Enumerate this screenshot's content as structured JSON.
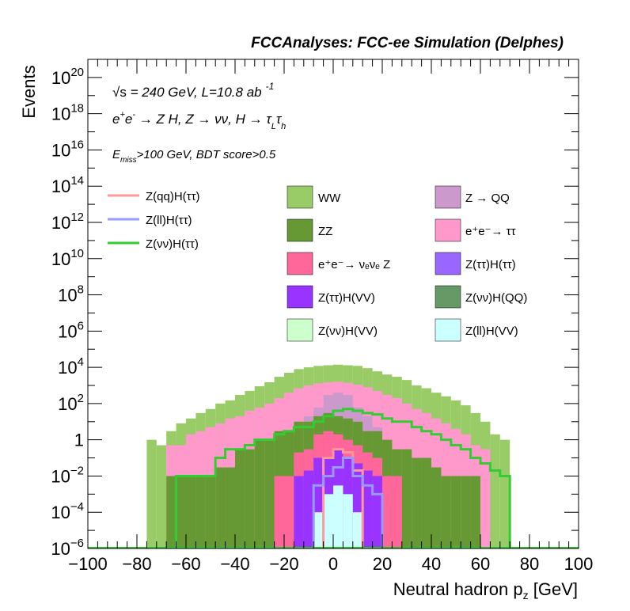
{
  "chart_data": {
    "type": "histogram",
    "title": "FCCAnalyses: FCC-ee Simulation (Delphes)",
    "xlabel": "Neutral hadron p",
    "xlabel_sub": "z",
    "xlabel_unit": "[GeV]",
    "ylabel": "Events",
    "xlim": [
      -100,
      100
    ],
    "ylim": [
      1e-06,
      1e+21
    ],
    "yscale": "log",
    "grid": false,
    "legend_position": "top (inside plot)",
    "annotations": {
      "sqrt": "√s",
      "energy": " = 240 GeV, L=10.8 ab",
      "lumi_exp": "-1",
      "proc_e": "e",
      "proc_plus": "+",
      "proc_e2": "e",
      "proc_minus": "-",
      "proc_main": " → Z H, Z → νν, H → τ",
      "proc_tauL": "L",
      "proc_tau2": "τ",
      "proc_tauh": "h",
      "cut_E": "E",
      "cut_miss": "miss",
      "cut_rest": ">100 GeV, BDT score>0.5"
    },
    "x_ticks": [
      "−100",
      "−80",
      "−60",
      "−40",
      "−20",
      "0",
      "20",
      "40",
      "60",
      "80",
      "100"
    ],
    "y_ticks": [
      {
        "base": "10",
        "exp": "−6"
      },
      {
        "base": "10",
        "exp": "−4"
      },
      {
        "base": "10",
        "exp": "−2"
      },
      {
        "base": "1",
        "exp": ""
      },
      {
        "base": "10",
        "exp": "2"
      },
      {
        "base": "10",
        "exp": "4"
      },
      {
        "base": "10",
        "exp": "6"
      },
      {
        "base": "10",
        "exp": "8"
      },
      {
        "base": "10",
        "exp": "10"
      },
      {
        "base": "10",
        "exp": "12"
      },
      {
        "base": "10",
        "exp": "14"
      },
      {
        "base": "10",
        "exp": "16"
      },
      {
        "base": "10",
        "exp": "18"
      },
      {
        "base": "10",
        "exp": "20"
      }
    ],
    "bin_edges": [
      -76,
      -72,
      -68,
      -64,
      -60,
      -56,
      -52,
      -48,
      -44,
      -40,
      -36,
      -32,
      -28,
      -24,
      -20,
      -16,
      -12,
      -8,
      -4,
      0,
      4,
      8,
      12,
      16,
      20,
      24,
      28,
      32,
      36,
      40,
      44,
      48,
      52,
      56,
      60,
      64,
      68,
      72
    ],
    "stacked_totals": [
      {
        "name": "WW",
        "color": "#99cc66",
        "values": [
          1.0,
          0.5,
          3.0,
          8.0,
          15,
          30,
          50,
          100,
          150,
          300,
          500,
          900,
          1500,
          3000,
          5000,
          8000,
          10000,
          12000,
          13000,
          14000,
          13000,
          12000,
          9000,
          6000,
          4000,
          3000,
          2000,
          1000,
          700,
          400,
          250,
          150,
          80,
          30,
          10,
          2.0,
          1.0
        ]
      },
      {
        "name": "e+e- → ττ",
        "color": "#ff99cc",
        "values": [
          1e-07,
          1e-07,
          0.5,
          0.5,
          2.0,
          3.0,
          5.0,
          8.0,
          15,
          20,
          40,
          60,
          100,
          200,
          400,
          700,
          1000,
          1300,
          1500,
          1600,
          1400,
          1100,
          800,
          500,
          300,
          200,
          100,
          50,
          30,
          15,
          8,
          4,
          2,
          0.5,
          0.3,
          1e-07,
          1e-07
        ]
      },
      {
        "name": "Z → QQ",
        "color": "#cc99cc",
        "values": [
          1e-07,
          1e-07,
          1e-07,
          1e-07,
          1e-07,
          1e-07,
          1e-07,
          1e-07,
          1e-07,
          1e-07,
          1e-07,
          1e-07,
          1e-07,
          1e-07,
          1e-07,
          5,
          20,
          60,
          300,
          400,
          300,
          60,
          20,
          5,
          1e-07,
          1e-07,
          1e-07,
          1e-07,
          1e-07,
          1e-07,
          1e-07,
          1e-07,
          1e-07,
          1e-07,
          1e-07,
          1e-07,
          1e-07
        ]
      },
      {
        "name": "ZZ",
        "color": "#669933",
        "values": [
          1e-07,
          1e-07,
          0.01,
          0.01,
          0.01,
          0.01,
          0.01,
          0.03,
          0.03,
          0.3,
          0.3,
          1.0,
          1.0,
          3.0,
          3.0,
          10,
          10,
          20,
          30,
          20,
          15,
          10,
          3.0,
          3.0,
          1.0,
          0.3,
          0.3,
          0.1,
          0.1,
          0.03,
          0.01,
          0.01,
          0.01,
          0.01,
          1e-07,
          1e-07,
          1e-07
        ]
      },
      {
        "name": "e+e- → νeνe Z",
        "color": "#ff6699",
        "values": [
          1e-07,
          1e-07,
          1e-07,
          1e-07,
          1e-07,
          1e-07,
          1e-07,
          1e-07,
          1e-07,
          1e-07,
          1e-07,
          1e-07,
          1e-07,
          0.01,
          0.01,
          0.2,
          0.3,
          2.0,
          3.0,
          2.0,
          1.0,
          0.5,
          0.2,
          0.1,
          0.01,
          0.01,
          1e-07,
          1e-07,
          1e-07,
          1e-07,
          1e-07,
          1e-07,
          1e-07,
          1e-07,
          1e-07,
          1e-07,
          1e-07
        ]
      },
      {
        "name": "Z(ττ)H(VV)",
        "color": "#9933ff",
        "values": [
          1e-07,
          1e-07,
          1e-07,
          1e-07,
          1e-07,
          1e-07,
          1e-07,
          1e-07,
          1e-07,
          1e-07,
          1e-07,
          1e-07,
          1e-07,
          1e-07,
          1e-07,
          0.01,
          0.02,
          0.1,
          0.1,
          0.3,
          0.1,
          0.05,
          0.02,
          0.01,
          1e-07,
          1e-07,
          1e-07,
          1e-07,
          1e-07,
          1e-07,
          1e-07,
          1e-07,
          1e-07,
          1e-07,
          1e-07,
          1e-07,
          1e-07
        ]
      },
      {
        "name": "Z(ll)H(VV)",
        "color": "#ccffff",
        "values": [
          1e-07,
          1e-07,
          1e-07,
          1e-07,
          1e-07,
          1e-07,
          1e-07,
          1e-07,
          1e-07,
          1e-07,
          1e-07,
          1e-07,
          1e-07,
          1e-07,
          1e-07,
          1e-07,
          1e-07,
          0.0001,
          0.001,
          0.003,
          0.001,
          0.0001,
          1e-07,
          1e-07,
          1e-07,
          1e-07,
          1e-07,
          1e-07,
          1e-07,
          1e-07,
          1e-07,
          1e-07,
          1e-07,
          1e-07,
          1e-07,
          1e-07,
          1e-07
        ]
      }
    ],
    "signal_lines": [
      {
        "name": "Z(qq)H(ττ)",
        "color": "#ff9999",
        "x": [
          -4,
          0,
          4,
          8
        ],
        "values": [
          0.1,
          0.3,
          0.2,
          0.02
        ]
      },
      {
        "name": "Z(ll)H(ττ)",
        "color": "#9999ff",
        "x": [
          -8,
          -4,
          0,
          4,
          8,
          12,
          16
        ],
        "values": [
          0.003,
          0.01,
          0.03,
          0.1,
          0.01,
          0.003,
          0.001
        ]
      },
      {
        "name": "Z(νν)H(ττ)",
        "color": "#33cc33",
        "x": [
          -64,
          -60,
          -56,
          -52,
          -48,
          -44,
          -40,
          -36,
          -32,
          -28,
          -24,
          -20,
          -16,
          -12,
          -8,
          -4,
          0,
          4,
          8,
          12,
          16,
          20,
          24,
          28,
          32,
          36,
          40,
          44,
          48,
          52,
          56,
          60,
          64,
          68
        ],
        "values": [
          0.01,
          0.01,
          0.01,
          0.01,
          0.1,
          0.3,
          0.3,
          0.5,
          1.0,
          1.0,
          2.0,
          3.0,
          5.0,
          5.0,
          10,
          20,
          40,
          50,
          40,
          30,
          25,
          15,
          10,
          10,
          5.0,
          3.0,
          2.0,
          1.0,
          0.5,
          0.3,
          0.1,
          0.05,
          0.02,
          0.01
        ]
      }
    ],
    "legend_lines": [
      {
        "label": "Z(qq)H(ττ)",
        "color": "#ff9999"
      },
      {
        "label": "Z(ll)H(ττ)",
        "color": "#9999ff"
      },
      {
        "label": "Z(νν)H(ττ)",
        "color": "#33cc33"
      }
    ],
    "legend_boxes_col1": [
      {
        "label": "WW",
        "color": "#99cc66"
      },
      {
        "label": "ZZ",
        "color": "#669933"
      },
      {
        "label": "e⁺e⁻→ νₑνₑ Z",
        "color": "#ff6699"
      },
      {
        "label": "Z(ττ)H(VV)",
        "color": "#9933ff"
      },
      {
        "label": "Z(νν)H(VV)",
        "color": "#ccffcc"
      }
    ],
    "legend_boxes_col2": [
      {
        "label": "Z → QQ",
        "color": "#cc99cc"
      },
      {
        "label": "e⁺e⁻→ ττ",
        "color": "#ff99cc"
      },
      {
        "label": "Z(ττ)H(ττ)",
        "color": "#9966ff"
      },
      {
        "label": "Z(νν)H(QQ)",
        "color": "#669966"
      },
      {
        "label": "Z(ll)H(VV)",
        "color": "#ccffff"
      }
    ]
  }
}
